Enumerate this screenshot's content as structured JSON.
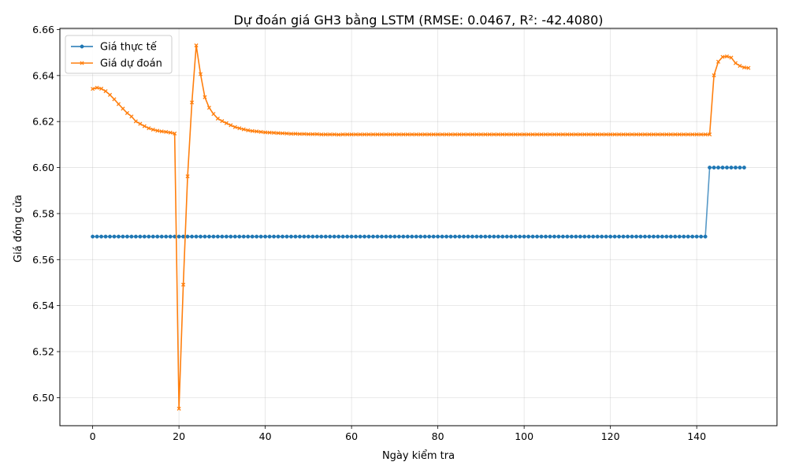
{
  "chart_data": {
    "type": "line",
    "title": "Dự đoán giá GH3 bằng LSTM (RMSE: 0.0467, R²: -42.4080)",
    "xlabel": "Ngày kiểm tra",
    "ylabel": "Giá đóng cửa",
    "xlim": [
      -7.6,
      158.6
    ],
    "ylim": [
      6.4878,
      6.6605
    ],
    "xticks": [
      0,
      20,
      40,
      60,
      80,
      100,
      120,
      140
    ],
    "yticks": [
      6.5,
      6.52,
      6.54,
      6.56,
      6.58,
      6.6,
      6.62,
      6.64,
      6.66
    ],
    "grid": true,
    "legend_position": "upper-left",
    "series": [
      {
        "name": "Giá thực tế",
        "color": "#1f77b4",
        "marker": "circle",
        "x_start": 0,
        "values": [
          6.57,
          6.57,
          6.57,
          6.57,
          6.57,
          6.57,
          6.57,
          6.57,
          6.57,
          6.57,
          6.57,
          6.57,
          6.57,
          6.57,
          6.57,
          6.57,
          6.57,
          6.57,
          6.57,
          6.57,
          6.57,
          6.57,
          6.57,
          6.57,
          6.57,
          6.57,
          6.57,
          6.57,
          6.57,
          6.57,
          6.57,
          6.57,
          6.57,
          6.57,
          6.57,
          6.57,
          6.57,
          6.57,
          6.57,
          6.57,
          6.57,
          6.57,
          6.57,
          6.57,
          6.57,
          6.57,
          6.57,
          6.57,
          6.57,
          6.57,
          6.57,
          6.57,
          6.57,
          6.57,
          6.57,
          6.57,
          6.57,
          6.57,
          6.57,
          6.57,
          6.57,
          6.57,
          6.57,
          6.57,
          6.57,
          6.57,
          6.57,
          6.57,
          6.57,
          6.57,
          6.57,
          6.57,
          6.57,
          6.57,
          6.57,
          6.57,
          6.57,
          6.57,
          6.57,
          6.57,
          6.57,
          6.57,
          6.57,
          6.57,
          6.57,
          6.57,
          6.57,
          6.57,
          6.57,
          6.57,
          6.57,
          6.57,
          6.57,
          6.57,
          6.57,
          6.57,
          6.57,
          6.57,
          6.57,
          6.57,
          6.57,
          6.57,
          6.57,
          6.57,
          6.57,
          6.57,
          6.57,
          6.57,
          6.57,
          6.57,
          6.57,
          6.57,
          6.57,
          6.57,
          6.57,
          6.57,
          6.57,
          6.57,
          6.57,
          6.57,
          6.57,
          6.57,
          6.57,
          6.57,
          6.57,
          6.57,
          6.57,
          6.57,
          6.57,
          6.57,
          6.57,
          6.57,
          6.57,
          6.57,
          6.57,
          6.57,
          6.57,
          6.57,
          6.57,
          6.57,
          6.57,
          6.57,
          6.57,
          6.6,
          6.6,
          6.6,
          6.6,
          6.6,
          6.6,
          6.6,
          6.6,
          6.6
        ]
      },
      {
        "name": "Giá dự đoán",
        "color": "#ff7f0e",
        "marker": "x",
        "x_start": 0,
        "values": [
          6.6342,
          6.6347,
          6.6343,
          6.6332,
          6.6316,
          6.6297,
          6.6276,
          6.6256,
          6.6237,
          6.6222,
          6.6201,
          6.619,
          6.618,
          6.6171,
          6.6165,
          6.616,
          6.6157,
          6.6155,
          6.6152,
          6.6148,
          6.4952,
          6.5491,
          6.5962,
          6.6283,
          6.6531,
          6.6406,
          6.6306,
          6.626,
          6.6233,
          6.6213,
          6.6202,
          6.6193,
          6.6184,
          6.6176,
          6.6171,
          6.6166,
          6.6162,
          6.6159,
          6.6157,
          6.6155,
          6.6153,
          6.6152,
          6.6151,
          6.615,
          6.6149,
          6.6148,
          6.6147,
          6.6147,
          6.6146,
          6.6146,
          6.6145,
          6.6145,
          6.6145,
          6.6144,
          6.6144,
          6.6144,
          6.6144,
          6.6143,
          6.6144,
          6.6144,
          6.6144,
          6.6144,
          6.6144,
          6.6144,
          6.6144,
          6.6144,
          6.6144,
          6.6144,
          6.6144,
          6.6144,
          6.6144,
          6.6144,
          6.6144,
          6.6144,
          6.6144,
          6.6144,
          6.6144,
          6.6144,
          6.6144,
          6.6144,
          6.6144,
          6.6144,
          6.6144,
          6.6144,
          6.6144,
          6.6144,
          6.6144,
          6.6144,
          6.6144,
          6.6144,
          6.6144,
          6.6144,
          6.6144,
          6.6144,
          6.6144,
          6.6144,
          6.6144,
          6.6144,
          6.6144,
          6.6144,
          6.6144,
          6.6144,
          6.6144,
          6.6144,
          6.6144,
          6.6144,
          6.6144,
          6.6144,
          6.6144,
          6.6144,
          6.6144,
          6.6144,
          6.6144,
          6.6144,
          6.6144,
          6.6144,
          6.6144,
          6.6144,
          6.6144,
          6.6144,
          6.6144,
          6.6144,
          6.6144,
          6.6144,
          6.6144,
          6.6144,
          6.6144,
          6.6144,
          6.6144,
          6.6144,
          6.6144,
          6.6144,
          6.6144,
          6.6144,
          6.6144,
          6.6144,
          6.6144,
          6.6144,
          6.6144,
          6.6144,
          6.6144,
          6.6144,
          6.6144,
          6.6144,
          6.6401,
          6.646,
          6.6481,
          6.6483,
          6.6478,
          6.6454,
          6.6442,
          6.6435,
          6.6433
        ]
      }
    ]
  }
}
